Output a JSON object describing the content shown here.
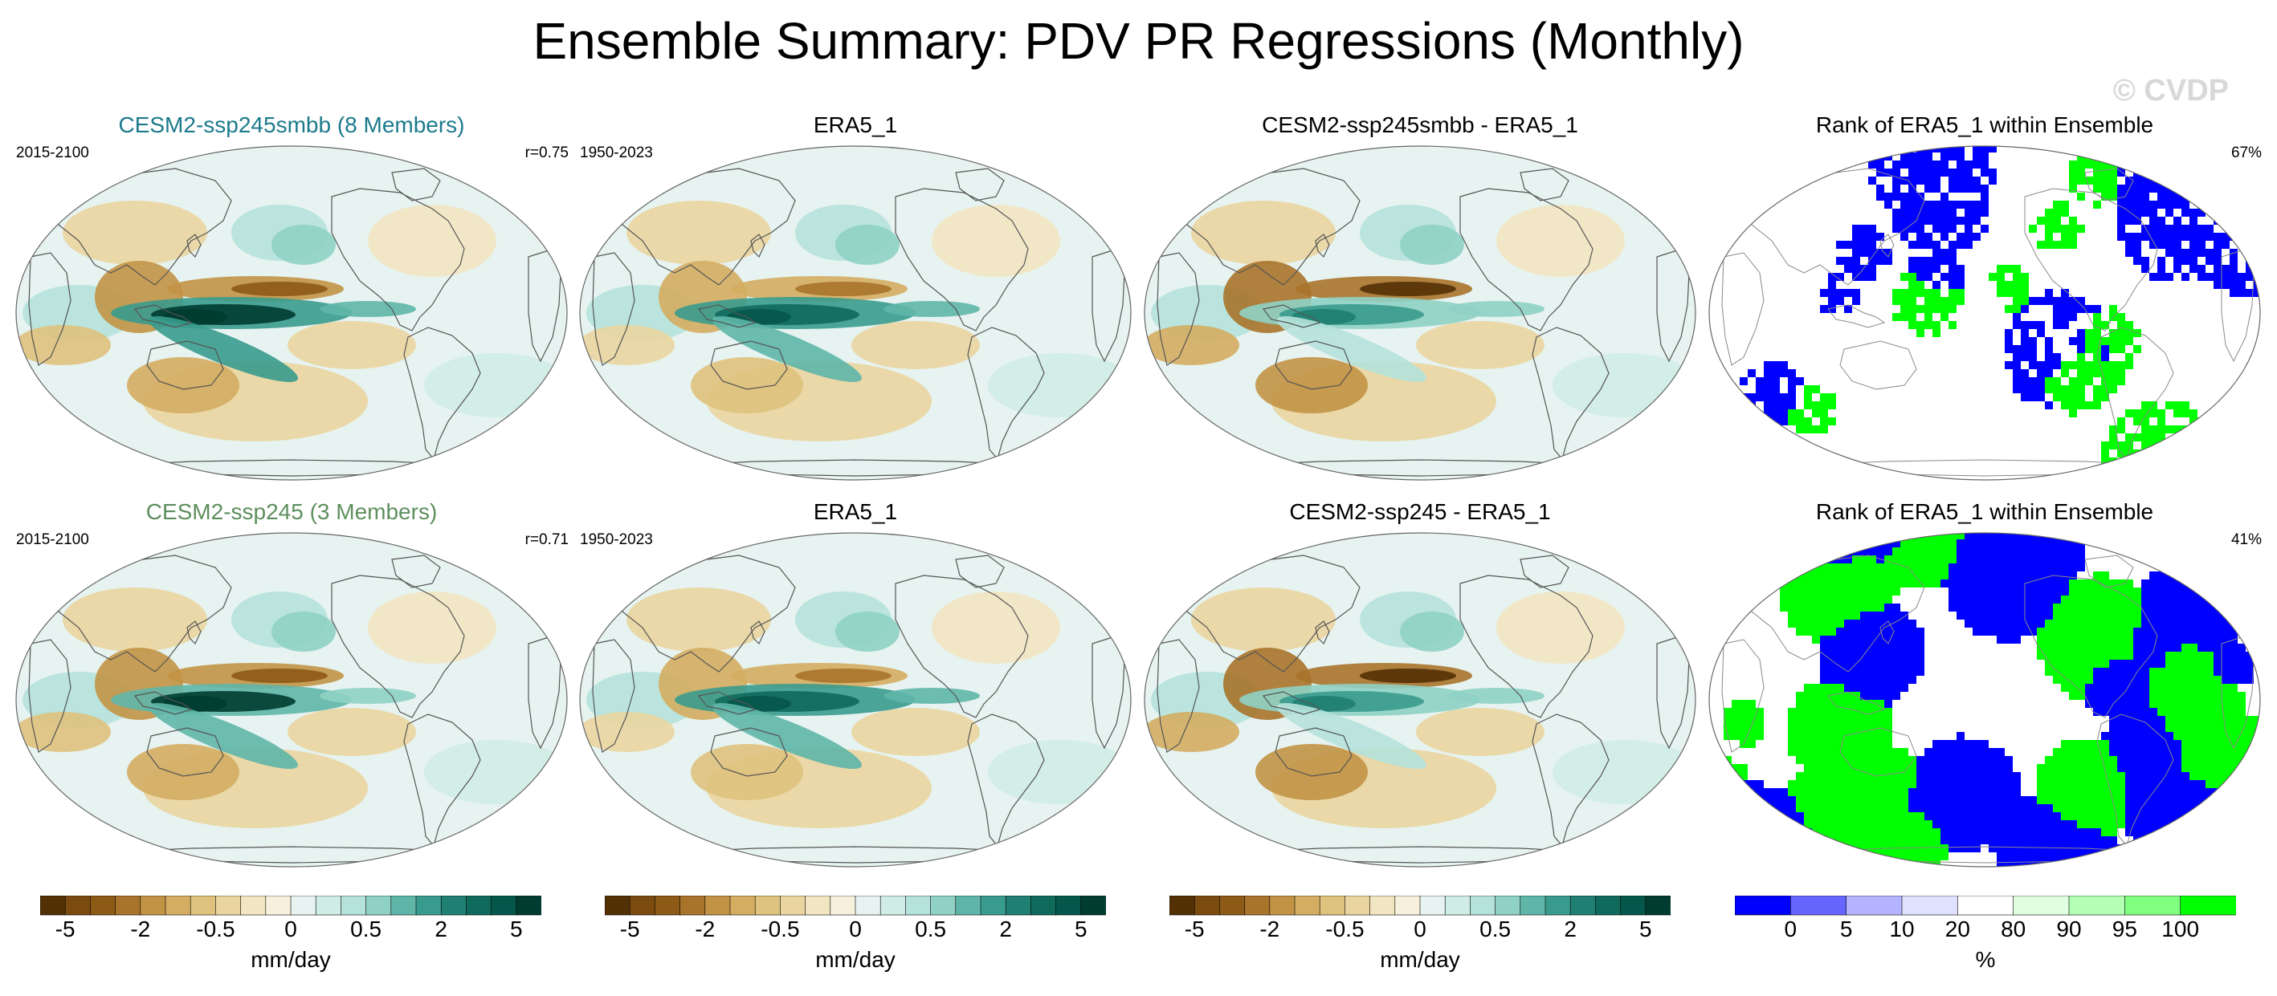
{
  "figure": {
    "title": "Ensemble Summary: PDV PR Regressions (Monthly)",
    "watermark": "© CVDP"
  },
  "colors": {
    "title_row1": "#1c7a8c",
    "title_row2": "#5e8f5e",
    "rank_blue": "#0000ff",
    "rank_green": "#00ff00",
    "land_line": "#555555"
  },
  "panels": [
    {
      "id": "r1c1",
      "title": "CESM2-ssp245smbb (8 Members)",
      "left": "2015-2100",
      "right": "r=0.75",
      "kind": "regression",
      "style": "ens1"
    },
    {
      "id": "r1c2",
      "title": "ERA5_1",
      "left": "1950-2023",
      "right": "",
      "kind": "regression",
      "style": "obs"
    },
    {
      "id": "r1c3",
      "title": "CESM2-ssp245smbb - ERA5_1",
      "left": "",
      "right": "",
      "kind": "difference",
      "style": "diff"
    },
    {
      "id": "r1c4",
      "title": "Rank of ERA5_1 within Ensemble",
      "left": "",
      "right": "67%",
      "kind": "rank",
      "style": "rank1"
    },
    {
      "id": "r2c1",
      "title": "CESM2-ssp245 (3 Members)",
      "left": "2015-2100",
      "right": "r=0.71",
      "kind": "regression",
      "style": "ens2"
    },
    {
      "id": "r2c2",
      "title": "ERA5_1",
      "left": "1950-2023",
      "right": "",
      "kind": "regression",
      "style": "obs"
    },
    {
      "id": "r2c3",
      "title": "CESM2-ssp245 - ERA5_1",
      "left": "",
      "right": "",
      "kind": "difference",
      "style": "diff"
    },
    {
      "id": "r2c4",
      "title": "Rank of ERA5_1 within Ensemble",
      "left": "",
      "right": "41%",
      "kind": "rank",
      "style": "rank2"
    }
  ],
  "chart_data": {
    "type": "heatmap",
    "projection": "robinson-like global map, Pacific-centered",
    "regression_colorbar": {
      "label": "mm/day",
      "ticks": [
        "-5",
        "-2",
        "-0.5",
        "0",
        "0.5",
        "2",
        "5"
      ],
      "colors": [
        "#543005",
        "#7a4a0f",
        "#8c5a16",
        "#a8732a",
        "#c29345",
        "#d4ad62",
        "#dfc27d",
        "#ead5a0",
        "#f2e6c2",
        "#f6f0dd",
        "#e6f3f0",
        "#d0ece6",
        "#b5e2da",
        "#8fd1c4",
        "#5fb6a8",
        "#399b8d",
        "#1f7f72",
        "#0f6a5c",
        "#04574a",
        "#003c30"
      ]
    },
    "rank_colorbar": {
      "label": "%",
      "ticks": [
        "0",
        "5",
        "10",
        "20",
        "80",
        "90",
        "95",
        "100"
      ],
      "colors": [
        "#0000ff",
        "#6666ff",
        "#b3b3ff",
        "#e0e0ff",
        "#ffffff",
        "#e0ffe0",
        "#b3ffb3",
        "#80ff80",
        "#00ff00"
      ]
    }
  }
}
